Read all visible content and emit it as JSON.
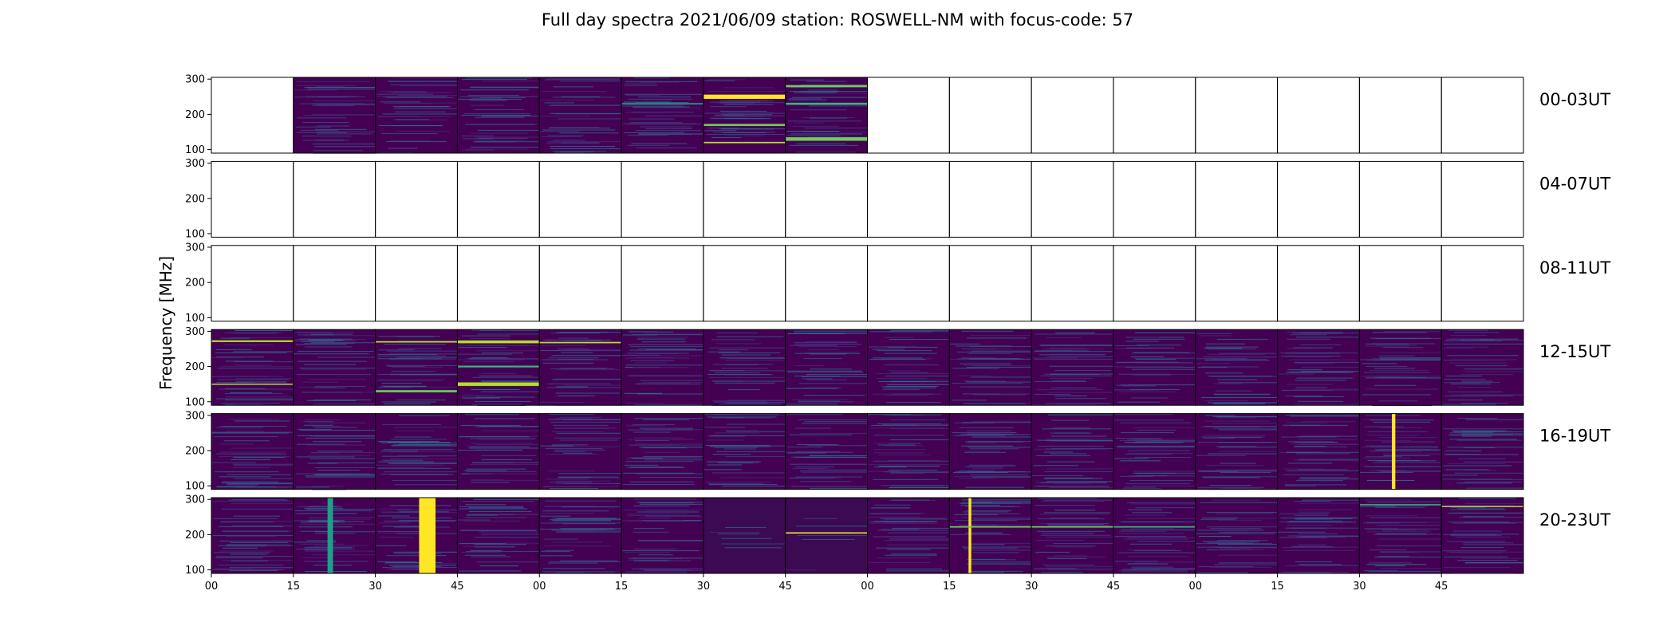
{
  "chart_data": {
    "type": "heatmap",
    "title": "Full day spectra 2021/06/09 station: ROSWELL-NM with focus-code: 57",
    "xlabel": "",
    "ylabel": "Frequency [MHz]",
    "yticks": [
      100,
      200,
      300
    ],
    "ylim": [
      90,
      305
    ],
    "xticks": [
      "00",
      "15",
      "30",
      "45",
      "00",
      "15",
      "30",
      "45",
      "00",
      "15",
      "30",
      "45",
      "00",
      "15",
      "30",
      "45"
    ],
    "colormap": [
      "#440154",
      "#482878",
      "#3e4a89",
      "#31688e",
      "#26828e",
      "#1f9e89",
      "#35b779",
      "#6ece58",
      "#b5de2b",
      "#fde725"
    ],
    "rows": [
      {
        "label": "00-03UT",
        "panels": [
          0,
          1,
          1,
          1,
          1,
          1,
          1,
          1,
          0,
          0,
          0,
          0,
          0,
          0,
          0,
          0
        ]
      },
      {
        "label": "04-07UT",
        "panels": [
          0,
          0,
          0,
          0,
          0,
          0,
          0,
          0,
          0,
          0,
          0,
          0,
          0,
          0,
          0,
          0
        ]
      },
      {
        "label": "08-11UT",
        "panels": [
          0,
          0,
          0,
          0,
          0,
          0,
          0,
          0,
          0,
          0,
          0,
          0,
          0,
          0,
          0,
          0
        ]
      },
      {
        "label": "12-15UT",
        "panels": [
          1,
          1,
          1,
          1,
          1,
          1,
          1,
          1,
          1,
          1,
          1,
          1,
          1,
          1,
          1,
          1
        ]
      },
      {
        "label": "16-19UT",
        "panels": [
          1,
          1,
          1,
          1,
          1,
          1,
          1,
          1,
          1,
          1,
          1,
          1,
          1,
          1,
          1,
          1
        ]
      },
      {
        "label": "20-23UT",
        "panels": [
          1,
          1,
          1,
          1,
          1,
          1,
          1,
          1,
          1,
          1,
          1,
          1,
          1,
          1,
          1,
          1
        ]
      }
    ],
    "features": [
      {
        "row": 0,
        "panel": 6,
        "kind": "hband",
        "freq": 250,
        "width": 12,
        "level": 0.95
      },
      {
        "row": 0,
        "panel": 6,
        "kind": "hband",
        "freq": 170,
        "width": 6,
        "level": 0.8
      },
      {
        "row": 0,
        "panel": 6,
        "kind": "hband",
        "freq": 120,
        "width": 4,
        "level": 0.9
      },
      {
        "row": 0,
        "panel": 7,
        "kind": "hband",
        "freq": 280,
        "width": 6,
        "level": 0.75
      },
      {
        "row": 0,
        "panel": 7,
        "kind": "hband",
        "freq": 230,
        "width": 6,
        "level": 0.7
      },
      {
        "row": 0,
        "panel": 7,
        "kind": "hband",
        "freq": 130,
        "width": 10,
        "level": 0.75
      },
      {
        "row": 0,
        "panel": 5,
        "kind": "hband",
        "freq": 230,
        "width": 4,
        "level": 0.6
      },
      {
        "row": 3,
        "panel": 0,
        "kind": "hband",
        "freq": 272,
        "width": 5,
        "level": 0.9
      },
      {
        "row": 3,
        "panel": 0,
        "kind": "hband",
        "freq": 150,
        "width": 3,
        "level": 0.85
      },
      {
        "row": 3,
        "panel": 2,
        "kind": "hband",
        "freq": 270,
        "width": 4,
        "level": 0.9
      },
      {
        "row": 3,
        "panel": 2,
        "kind": "hband",
        "freq": 130,
        "width": 6,
        "level": 0.75
      },
      {
        "row": 3,
        "panel": 3,
        "kind": "hband",
        "freq": 270,
        "width": 8,
        "level": 0.9
      },
      {
        "row": 3,
        "panel": 3,
        "kind": "hband",
        "freq": 150,
        "width": 10,
        "level": 0.85
      },
      {
        "row": 3,
        "panel": 3,
        "kind": "hband",
        "freq": 200,
        "width": 5,
        "level": 0.7
      },
      {
        "row": 3,
        "panel": 4,
        "kind": "hband",
        "freq": 268,
        "width": 4,
        "level": 0.85
      },
      {
        "row": 4,
        "panel": 14,
        "kind": "vband",
        "minute": 25,
        "width": 2.5,
        "level": 0.95
      },
      {
        "row": 5,
        "panel": 1,
        "kind": "vband",
        "minute": 27,
        "width": 4,
        "level": 0.6
      },
      {
        "row": 5,
        "panel": 2,
        "kind": "vband",
        "minute": 38,
        "width": 12,
        "level": 1.0
      },
      {
        "row": 5,
        "panel": 6,
        "kind": "dark",
        "level": 0.0
      },
      {
        "row": 5,
        "panel": 7,
        "kind": "dark",
        "level": 0.0
      },
      {
        "row": 5,
        "panel": 7,
        "kind": "hband",
        "freq": 205,
        "width": 3,
        "level": 0.95
      },
      {
        "row": 5,
        "panel": 9,
        "kind": "vband",
        "minute": 15,
        "width": 2,
        "level": 1.0
      },
      {
        "row": 5,
        "panel": 9,
        "kind": "hband",
        "freq": 222,
        "width": 4,
        "level": 0.75
      },
      {
        "row": 5,
        "panel": 10,
        "kind": "hband",
        "freq": 222,
        "width": 4,
        "level": 0.75
      },
      {
        "row": 5,
        "panel": 11,
        "kind": "hband",
        "freq": 222,
        "width": 4,
        "level": 0.7
      },
      {
        "row": 5,
        "panel": 14,
        "kind": "hband",
        "freq": 285,
        "width": 3,
        "level": 0.7
      },
      {
        "row": 5,
        "panel": 15,
        "kind": "hband",
        "freq": 280,
        "width": 3,
        "level": 0.85
      }
    ]
  }
}
